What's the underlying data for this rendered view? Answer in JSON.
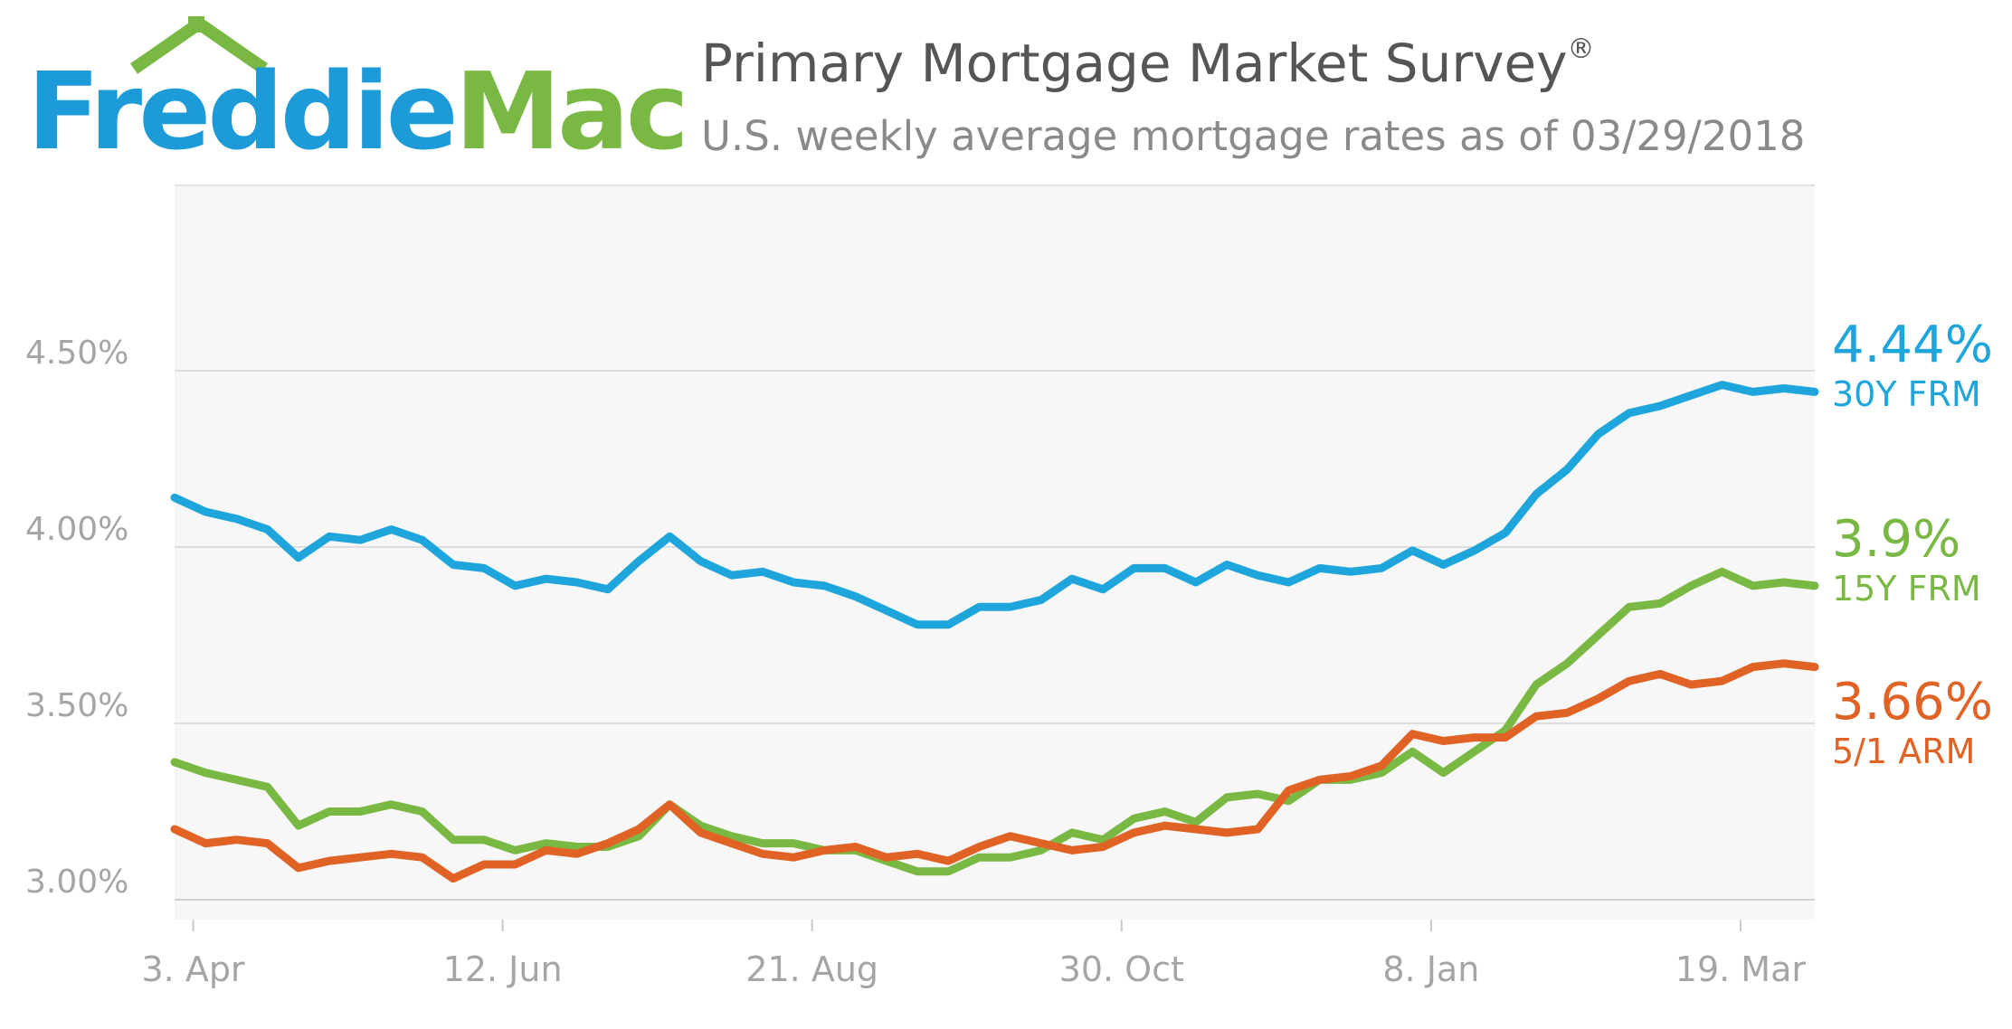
{
  "header": {
    "logo_left": "Freddie",
    "logo_right": "Mac",
    "title": "Primary Mortgage Market Survey",
    "title_mark": "®",
    "subtitle": "U.S. weekly average mortgage rates as of 03/29/2018"
  },
  "colors": {
    "frm30": "#1ea5dc",
    "frm15": "#79b943",
    "arm51": "#e06325",
    "grid": "#dddddd",
    "plot_bg": "#f7f7f7",
    "axis_text": "#999999"
  },
  "callouts": {
    "frm30": {
      "value": "4.44%",
      "label": "30Y FRM"
    },
    "frm15": {
      "value": "3.9%",
      "label": "15Y FRM"
    },
    "arm51": {
      "value": "3.66%",
      "label": "5/1 ARM"
    }
  },
  "chart_data": {
    "type": "line",
    "title": "Primary Mortgage Market Survey",
    "subtitle": "U.S. weekly average mortgage rates as of 03/29/2018",
    "x_start": "2017-03-30",
    "x_step_days": 7,
    "xticks": [
      {
        "label": "3. Apr",
        "index": 0.6
      },
      {
        "label": "12. Jun",
        "index": 10.6
      },
      {
        "label": "21. Aug",
        "index": 20.6
      },
      {
        "label": "30. Oct",
        "index": 30.6
      },
      {
        "label": "8. Jan",
        "index": 40.6
      },
      {
        "label": "19. Mar",
        "index": 50.6
      }
    ],
    "yticks": [
      3.0,
      3.5,
      4.0,
      4.5
    ],
    "ytick_labels": [
      "3.00%",
      "3.50%",
      "4.00%",
      "4.50%"
    ],
    "ylim": [
      2.95,
      5.0
    ],
    "grid": true,
    "legend": "right",
    "series": [
      {
        "name": "30Y FRM",
        "color": "#1ea5dc",
        "values": [
          4.14,
          4.1,
          4.08,
          4.05,
          3.97,
          4.03,
          4.02,
          4.05,
          4.02,
          3.95,
          3.94,
          3.89,
          3.91,
          3.9,
          3.88,
          3.96,
          4.03,
          3.96,
          3.92,
          3.93,
          3.9,
          3.89,
          3.86,
          3.82,
          3.78,
          3.78,
          3.83,
          3.83,
          3.85,
          3.91,
          3.88,
          3.94,
          3.94,
          3.9,
          3.95,
          3.92,
          3.9,
          3.94,
          3.93,
          3.94,
          3.99,
          3.95,
          3.99,
          4.04,
          4.15,
          4.22,
          4.32,
          4.38,
          4.4,
          4.43,
          4.46,
          4.44,
          4.45,
          4.44
        ]
      },
      {
        "name": "15Y FRM",
        "color": "#79b943",
        "values": [
          3.39,
          3.36,
          3.34,
          3.32,
          3.21,
          3.25,
          3.25,
          3.27,
          3.25,
          3.17,
          3.17,
          3.14,
          3.16,
          3.15,
          3.15,
          3.18,
          3.27,
          3.21,
          3.18,
          3.16,
          3.16,
          3.14,
          3.14,
          3.11,
          3.08,
          3.08,
          3.12,
          3.12,
          3.14,
          3.19,
          3.17,
          3.23,
          3.25,
          3.22,
          3.29,
          3.3,
          3.28,
          3.34,
          3.34,
          3.36,
          3.42,
          3.36,
          3.42,
          3.48,
          3.61,
          3.67,
          3.75,
          3.83,
          3.84,
          3.89,
          3.93,
          3.89,
          3.9,
          3.89
        ]
      },
      {
        "name": "5/1 ARM",
        "color": "#e06325",
        "values": [
          3.2,
          3.16,
          3.17,
          3.16,
          3.09,
          3.11,
          3.12,
          3.13,
          3.12,
          3.06,
          3.1,
          3.1,
          3.14,
          3.13,
          3.16,
          3.2,
          3.27,
          3.19,
          3.16,
          3.13,
          3.12,
          3.14,
          3.15,
          3.12,
          3.13,
          3.11,
          3.15,
          3.18,
          3.16,
          3.14,
          3.15,
          3.19,
          3.21,
          3.2,
          3.19,
          3.2,
          3.31,
          3.34,
          3.35,
          3.38,
          3.47,
          3.45,
          3.46,
          3.46,
          3.52,
          3.53,
          3.57,
          3.62,
          3.64,
          3.61,
          3.62,
          3.66,
          3.67,
          3.66
        ]
      }
    ]
  }
}
